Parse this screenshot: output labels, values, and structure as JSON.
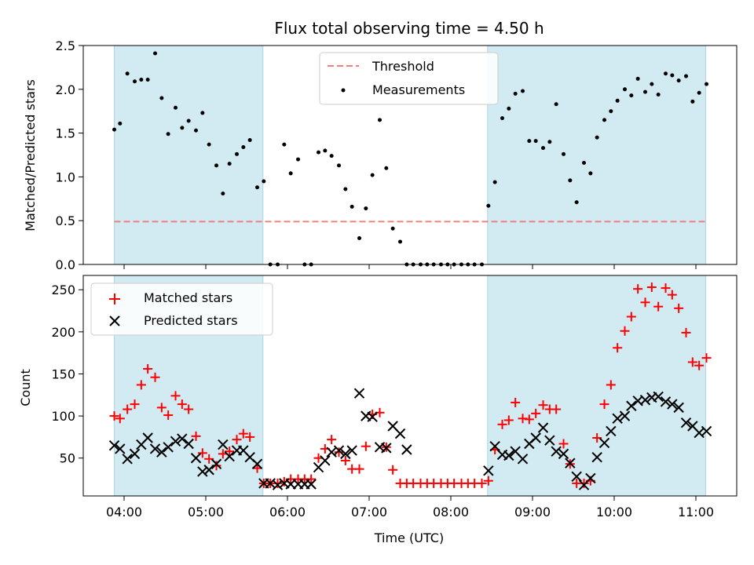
{
  "chart_data": {
    "title": "Flux total observing time = 4.50 h",
    "xlabel": "Time (UTC)",
    "x_ticks": [
      "04:00",
      "05:00",
      "06:00",
      "07:00",
      "08:00",
      "09:00",
      "10:00",
      "11:00"
    ],
    "x_tick_hours": [
      4,
      5,
      6,
      7,
      8,
      9,
      10,
      11
    ],
    "xlim_hours": [
      3.5,
      11.5
    ],
    "shaded_intervals_hours": [
      [
        3.88,
        5.7
      ],
      [
        8.45,
        11.12
      ]
    ],
    "shade_color": "#add8e6",
    "panels": [
      {
        "type": "scatter",
        "ylabel": "Matched/Predicted stars",
        "ylim": [
          0,
          2.5
        ],
        "yticks": [
          0.0,
          0.5,
          1.0,
          1.5,
          2.0,
          2.5
        ],
        "ytick_labels": [
          "0.0",
          "0.5",
          "1.0",
          "1.5",
          "2.0",
          "2.5"
        ],
        "threshold": {
          "name": "Threshold",
          "value": 0.49,
          "color": "#f08080"
        },
        "legend_position": "upper-center",
        "series": [
          {
            "name": "Measurements",
            "color": "#000000",
            "x_hours": [
              3.88,
              3.95,
              4.04,
              4.13,
              4.21,
              4.29,
              4.38,
              4.46,
              4.54,
              4.63,
              4.71,
              4.79,
              4.88,
              4.96,
              5.04,
              5.13,
              5.21,
              5.29,
              5.38,
              5.46,
              5.54,
              5.63,
              5.71,
              5.79,
              5.88,
              5.96,
              6.04,
              6.13,
              6.21,
              6.29,
              6.38,
              6.46,
              6.54,
              6.63,
              6.71,
              6.79,
              6.88,
              6.96,
              7.04,
              7.13,
              7.21,
              7.29,
              7.38,
              7.46,
              7.54,
              7.63,
              7.71,
              7.79,
              7.88,
              7.96,
              8.04,
              8.13,
              8.21,
              8.29,
              8.38,
              8.46,
              8.54,
              8.63,
              8.71,
              8.79,
              8.88,
              8.96,
              9.04,
              9.13,
              9.21,
              9.29,
              9.38,
              9.46,
              9.54,
              9.63,
              9.71,
              9.79,
              9.88,
              9.96,
              10.04,
              10.13,
              10.21,
              10.29,
              10.38,
              10.46,
              10.54,
              10.63,
              10.71,
              10.79,
              10.88,
              10.96,
              11.04,
              11.13
            ],
            "values": [
              1.54,
              1.61,
              2.18,
              2.09,
              2.11,
              2.11,
              2.41,
              1.9,
              1.49,
              1.79,
              1.56,
              1.64,
              1.53,
              1.73,
              1.37,
              1.13,
              0.81,
              1.15,
              1.26,
              1.34,
              1.42,
              0.88,
              0.95,
              0.0,
              0.0,
              1.37,
              1.04,
              1.2,
              0.0,
              0.0,
              1.28,
              1.3,
              1.24,
              1.13,
              0.86,
              0.66,
              0.3,
              0.64,
              1.02,
              1.65,
              1.1,
              0.41,
              0.26,
              0.0,
              0.0,
              0.0,
              0.0,
              0.0,
              0.0,
              0.0,
              0.0,
              0.0,
              0.0,
              0.0,
              0.0,
              0.67,
              0.94,
              1.67,
              1.78,
              1.95,
              1.98,
              1.41,
              1.41,
              1.33,
              1.4,
              1.83,
              1.26,
              0.96,
              0.71,
              1.16,
              1.04,
              1.45,
              1.65,
              1.75,
              1.87,
              2.0,
              1.93,
              2.12,
              1.97,
              2.06,
              1.94,
              2.18,
              2.16,
              2.1,
              2.15,
              1.86,
              1.96,
              2.06
            ]
          }
        ]
      },
      {
        "type": "scatter",
        "ylabel": "Count",
        "ylim": [
          5,
          267
        ],
        "yticks": [
          50,
          100,
          150,
          200,
          250
        ],
        "ytick_labels": [
          "50",
          "100",
          "150",
          "200",
          "250"
        ],
        "legend_position": "upper-left",
        "series": [
          {
            "name": "Matched stars",
            "marker": "plus",
            "color": "#ff0000",
            "x_hours": [
              3.88,
              3.95,
              4.04,
              4.13,
              4.21,
              4.29,
              4.38,
              4.46,
              4.54,
              4.63,
              4.71,
              4.79,
              4.88,
              4.96,
              5.04,
              5.13,
              5.21,
              5.29,
              5.38,
              5.46,
              5.54,
              5.63,
              5.71,
              5.79,
              5.88,
              5.96,
              6.04,
              6.13,
              6.21,
              6.29,
              6.38,
              6.46,
              6.54,
              6.63,
              6.71,
              6.79,
              6.88,
              6.96,
              7.04,
              7.13,
              7.21,
              7.29,
              7.38,
              7.46,
              7.54,
              7.63,
              7.71,
              7.79,
              7.88,
              7.96,
              8.04,
              8.13,
              8.21,
              8.29,
              8.38,
              8.46,
              8.54,
              8.63,
              8.71,
              8.79,
              8.88,
              8.96,
              9.04,
              9.13,
              9.21,
              9.29,
              9.38,
              9.46,
              9.54,
              9.63,
              9.71,
              9.79,
              9.88,
              9.96,
              10.04,
              10.13,
              10.21,
              10.29,
              10.38,
              10.46,
              10.54,
              10.63,
              10.71,
              10.79,
              10.88,
              10.96,
              11.04,
              11.13
            ],
            "values": [
              100,
              97,
              108,
              114,
              137,
              156,
              146,
              110,
              101,
              124,
              114,
              108,
              76,
              56,
              49,
              41,
              55,
              58,
              72,
              79,
              75,
              38,
              20,
              20,
              20,
              22,
              25,
              25,
              25,
              25,
              50,
              61,
              72,
              57,
              47,
              37,
              37,
              64,
              102,
              104,
              63,
              36,
              20,
              20,
              20,
              20,
              20,
              20,
              20,
              20,
              20,
              20,
              20,
              20,
              20,
              23,
              60,
              90,
              95,
              116,
              97,
              96,
              103,
              113,
              108,
              108,
              67,
              43,
              20,
              20,
              23,
              74,
              114,
              137,
              181,
              201,
              218,
              251,
              235,
              253,
              230,
              252,
              244,
              228,
              199,
              164,
              160,
              169
            ]
          },
          {
            "name": "Predicted stars",
            "marker": "x",
            "color": "#000000",
            "x_hours": [
              3.88,
              3.95,
              4.04,
              4.13,
              4.21,
              4.29,
              4.38,
              4.46,
              4.54,
              4.63,
              4.71,
              4.79,
              4.88,
              4.96,
              5.04,
              5.13,
              5.21,
              5.29,
              5.38,
              5.46,
              5.54,
              5.63,
              5.71,
              5.79,
              5.88,
              5.96,
              6.04,
              6.13,
              6.21,
              6.29,
              6.38,
              6.46,
              6.54,
              6.63,
              6.71,
              6.79,
              6.88,
              6.96,
              7.04,
              7.13,
              7.21,
              7.29,
              7.38,
              7.46,
              8.46,
              8.54,
              8.63,
              8.71,
              8.79,
              8.88,
              8.96,
              9.04,
              9.13,
              9.21,
              9.29,
              9.38,
              9.46,
              9.54,
              9.63,
              9.71,
              9.79,
              9.88,
              9.96,
              10.04,
              10.13,
              10.21,
              10.29,
              10.38,
              10.46,
              10.54,
              10.63,
              10.71,
              10.79,
              10.88,
              10.96,
              11.04,
              11.13
            ],
            "values": [
              65,
              61,
              49,
              55,
              66,
              74,
              61,
              57,
              63,
              70,
              73,
              67,
              50,
              34,
              36,
              43,
              66,
              52,
              59,
              59,
              51,
              43,
              20,
              20,
              18,
              20,
              19,
              19,
              19,
              19,
              39,
              47,
              57,
              59,
              55,
              59,
              127,
              100,
              99,
              63,
              62,
              88,
              79,
              60,
              35,
              64,
              54,
              53,
              58,
              49,
              67,
              74,
              86,
              71,
              58,
              55,
              44,
              28,
              18,
              26,
              51,
              68,
              82,
              97,
              100,
              112,
              118,
              119,
              122,
              123,
              117,
              114,
              110,
              92,
              88,
              80,
              82
            ]
          }
        ]
      }
    ]
  }
}
